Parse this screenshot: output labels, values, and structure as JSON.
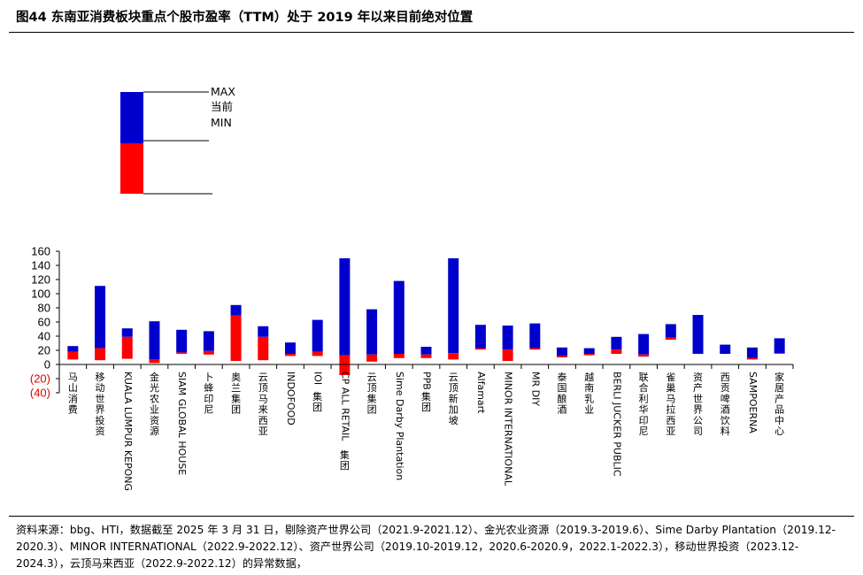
{
  "title": "图44 东南亚消费板块重点个股市盈率（TTM）处于 2019 年以来目前绝对位置",
  "source": "资料来源：bbg、HTI，数据截至 2025 年 3 月 31 日，剔除资产世界公司（2021.9-2021.12）、金光农业资源（2019.3-2019.6）、Sime Darby Plantation（2019.12-2020.3）、MINOR INTERNATIONAL（2022.9-2022.12）、资产世界公司（2019.10-2019.12，2020.6-2020.9，2022.1-2022.3），移动世界投资（2023.12-2024.3），云顶马来西亚（2022.9-2022.12）的异常数据，",
  "legend": {
    "max": "MAX",
    "current": "当前",
    "min": "MIN"
  },
  "colors": {
    "upper": "#0000cc",
    "lower": "#ff0000",
    "negative_tick": "#e00000"
  },
  "chart_data": {
    "type": "bar",
    "subtype": "floating-range",
    "ylim": [
      -40,
      160
    ],
    "yticks": [
      -40,
      -20,
      0,
      20,
      40,
      60,
      80,
      100,
      120,
      140,
      160
    ],
    "ytick_labels": [
      "(40)",
      "(20)",
      "0",
      "20",
      "40",
      "60",
      "80",
      "100",
      "120",
      "140",
      "160"
    ],
    "grid": false,
    "categories": [
      "马山消费",
      "移动世界投资",
      "KUALA LUMPUR KEPONG",
      "金光农业资源",
      "SIAM GLOBAL HOUSE",
      "卜蜂印尼",
      "奥兰集团",
      "云顶马来西亚",
      "INDOFOOD",
      "IOI集团",
      "CP ALL RETAIL集团",
      "云顶集团",
      "Sime Darby Plantation",
      "PPB集团",
      "云顶新加坡",
      "Alfamart",
      "MINOR INTERNATIONAL",
      "MR DIY",
      "泰国酿酒",
      "越南乳业",
      "BERLI JUCKER PUBLIC",
      "联合利华印尼",
      "雀巢马拉西亚",
      "资产世界公司",
      "西贡啤酒饮料",
      "SAMPOERNA",
      "家居产品中心"
    ],
    "max": [
      26,
      111,
      51,
      61,
      49,
      47,
      84,
      54,
      31,
      63,
      150,
      78,
      118,
      25,
      150,
      56,
      55,
      58,
      24,
      23,
      39,
      43,
      57,
      70,
      28,
      24,
      37
    ],
    "current": [
      18,
      23,
      39,
      7,
      17,
      19,
      69,
      39,
      15,
      18,
      13,
      14,
      15,
      14,
      16,
      23,
      21,
      23,
      12,
      15,
      21,
      14,
      38,
      15,
      15,
      9,
      16
    ],
    "min": [
      7,
      6,
      8,
      2,
      15,
      14,
      5,
      6,
      12,
      12,
      -15,
      4,
      9,
      9,
      7,
      21,
      5,
      21,
      10,
      13,
      15,
      11,
      35,
      15,
      15,
      7,
      15
    ]
  }
}
